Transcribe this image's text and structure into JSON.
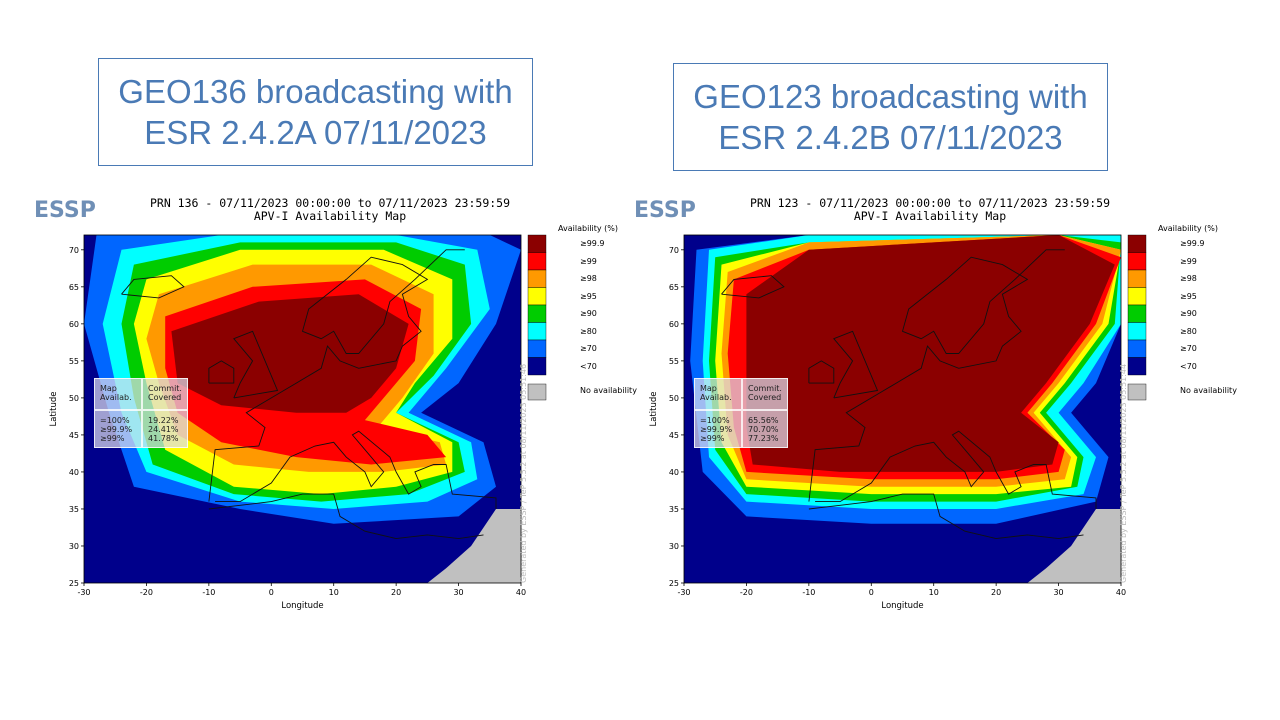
{
  "slide": {
    "left_title_line1": "GEO136 broadcasting with",
    "left_title_line2": "ESR 2.4.2A 07/11/2023",
    "right_title_line1": "GEO123 broadcasting with",
    "right_title_line2": "ESR 2.4.2B 07/11/2023"
  },
  "common": {
    "logo": "ESSP",
    "map_title_line2": "APV-I Availability Map",
    "xlabel": "Longitude",
    "ylabel": "Latitude",
    "legend_title": "Availability (%)",
    "legend_items": [
      "≥99.9",
      "≥99",
      "≥98",
      "≥95",
      "≥90",
      "≥80",
      "≥70",
      "<70"
    ],
    "legend_colors": [
      "#8b0000",
      "#ff0000",
      "#ff9900",
      "#ffff00",
      "#00cc00",
      "#00ffff",
      "#0066ff",
      "#00008b"
    ],
    "no_availability": "No availability",
    "no_availability_color": "#c0c0c0",
    "table_header_col1": "Map\nAvailab.",
    "table_header_col2": "Commit.\nCovered",
    "table_levels": "=100%\n≥99.9%\n≥99%",
    "x_ticks": [
      "-30",
      "-20",
      "-10",
      "0",
      "10",
      "20",
      "30",
      "40"
    ],
    "y_ticks": [
      "70",
      "65",
      "60",
      "55",
      "50",
      "45",
      "40",
      "35",
      "30",
      "25"
    ],
    "xlim": [
      -30,
      40
    ],
    "ylim": [
      25,
      72
    ]
  },
  "maps": [
    {
      "map_title_line1": "PRN 136 - 07/11/2023 00:00:00 to 07/11/2023 23:59:59",
      "table_values": "19.22%\n24.41%\n41.78%",
      "watermark": "Generated by ESSP / TeP 5.5.2 at 08/11/2023 05:51:46"
    },
    {
      "map_title_line1": "PRN 123 - 07/11/2023 00:00:00 to 07/11/2023 23:59:59",
      "table_values": "65.56%\n70.70%\n77.23%",
      "watermark": "Generated by ESSP / TeP 5.5.2 at 08/11/2023 05:51:44"
    }
  ]
}
